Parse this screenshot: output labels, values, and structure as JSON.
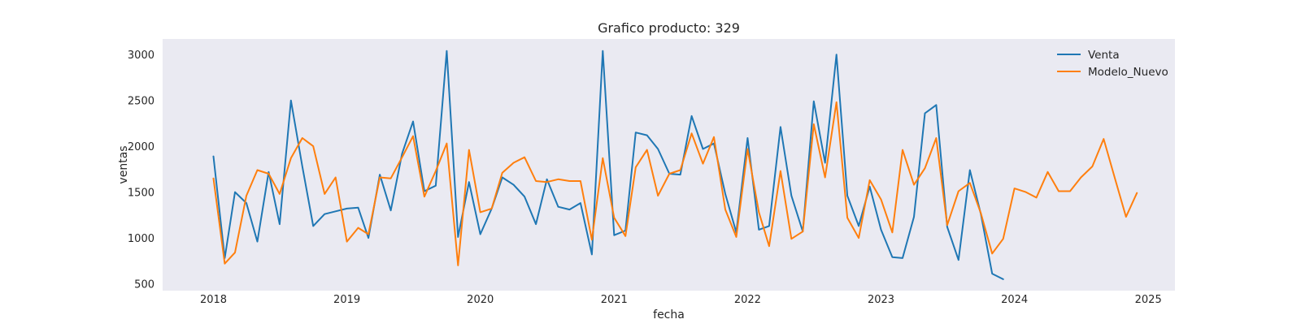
{
  "chart_data": {
    "type": "line",
    "title": "Grafico producto: 329",
    "xlabel": "fecha",
    "ylabel": "ventas",
    "x_ticks": [
      "2018",
      "2019",
      "2020",
      "2021",
      "2022",
      "2023",
      "2024",
      "2025"
    ],
    "y_ticks": [
      "500",
      "1000",
      "1500",
      "2000",
      "2500",
      "3000"
    ],
    "xlim": [
      "2017-08-15",
      "2025-03-15"
    ],
    "ylim": [
      425,
      3170
    ],
    "grid": false,
    "legend_position": "top-right",
    "x_unit": "month",
    "x_start": "2018-01",
    "series": [
      {
        "name": "Venta",
        "color": "#1f77b4",
        "values": [
          1890,
          780,
          1500,
          1380,
          960,
          1720,
          1150,
          2500,
          1780,
          1130,
          1260,
          1290,
          1320,
          1330,
          1000,
          1690,
          1300,
          1920,
          2270,
          1510,
          1570,
          3040,
          1010,
          1610,
          1040,
          1320,
          1660,
          1580,
          1450,
          1150,
          1640,
          1340,
          1310,
          1380,
          820,
          3040,
          1030,
          1080,
          2150,
          2120,
          1970,
          1700,
          1690,
          2330,
          1970,
          2030,
          1480,
          1060,
          2090,
          1090,
          1130,
          2210,
          1460,
          1070,
          2490,
          1820,
          3000,
          1460,
          1130,
          1560,
          1090,
          790,
          780,
          1230,
          2360,
          2450,
          1120,
          760,
          1740,
          1260,
          610,
          550
        ]
      },
      {
        "name": "Modelo_Nuevo",
        "color": "#ff7f0e",
        "values": [
          1650,
          720,
          840,
          1460,
          1740,
          1700,
          1480,
          1870,
          2090,
          2000,
          1480,
          1660,
          960,
          1110,
          1040,
          1660,
          1650,
          1880,
          2110,
          1450,
          1730,
          2030,
          700,
          1960,
          1280,
          1320,
          1710,
          1820,
          1880,
          1620,
          1610,
          1640,
          1620,
          1620,
          980,
          1870,
          1220,
          1020,
          1770,
          1960,
          1460,
          1700,
          1740,
          2140,
          1810,
          2100,
          1310,
          1010,
          1970,
          1280,
          910,
          1730,
          990,
          1070,
          2240,
          1660,
          2480,
          1220,
          1000,
          1630,
          1420,
          1060,
          1960,
          1580,
          1760,
          2090,
          1140,
          1510,
          1600,
          1270,
          830,
          990,
          1540,
          1500,
          1440,
          1720,
          1510,
          1510,
          1660,
          1780,
          2080,
          1660,
          1230,
          1490
        ]
      }
    ]
  }
}
